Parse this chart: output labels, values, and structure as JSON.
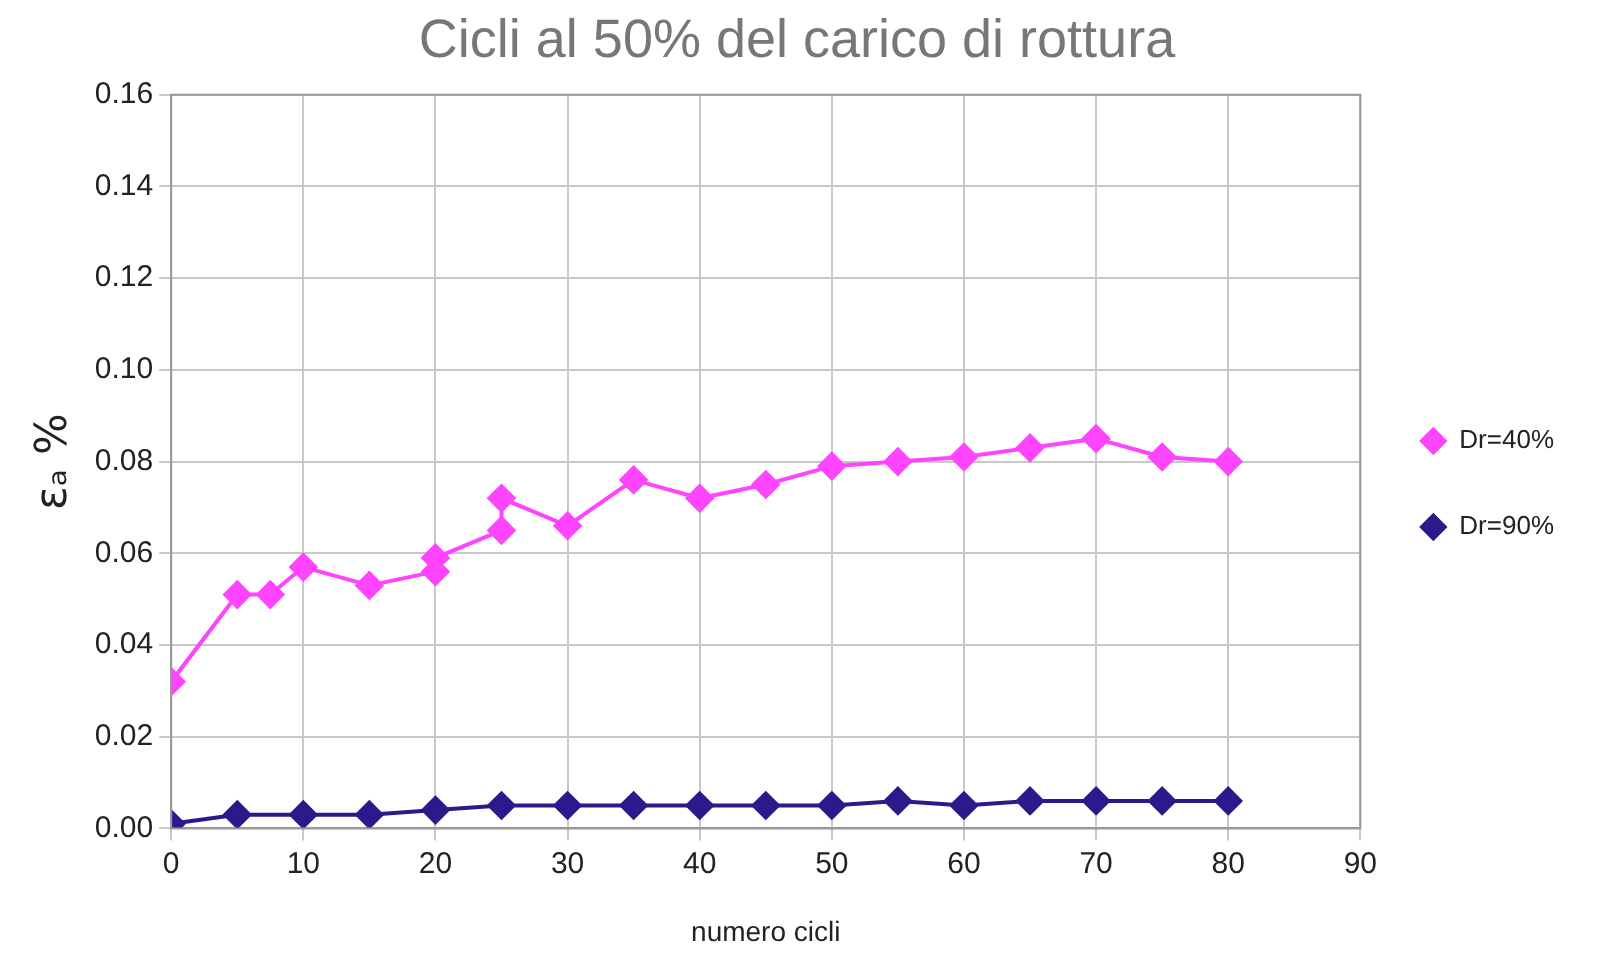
{
  "chart_data": {
    "type": "line",
    "title": "Cicli al 50% del carico di rottura",
    "xlabel": "numero cicli",
    "ylabel": "εₐ %",
    "series": [
      {
        "name": "Dr=40%",
        "color": "#ff44ff",
        "x": [
          0,
          5,
          7.5,
          10,
          15,
          20,
          20,
          25,
          25,
          30,
          35,
          40,
          45,
          50,
          55,
          60,
          65,
          70,
          75,
          80
        ],
        "values": [
          0.032,
          0.051,
          0.051,
          0.057,
          0.053,
          0.056,
          0.059,
          0.065,
          0.072,
          0.066,
          0.076,
          0.072,
          0.075,
          0.079,
          0.08,
          0.081,
          0.083,
          0.085,
          0.081,
          0.08
        ]
      },
      {
        "name": "Dr=90%",
        "color": "#2a1a8c",
        "x": [
          0,
          5,
          10,
          15,
          20,
          25,
          30,
          35,
          40,
          45,
          50,
          55,
          60,
          65,
          70,
          75,
          80
        ],
        "values": [
          0.001,
          0.003,
          0.003,
          0.003,
          0.004,
          0.005,
          0.005,
          0.005,
          0.005,
          0.005,
          0.005,
          0.006,
          0.005,
          0.006,
          0.006,
          0.006,
          0.006
        ]
      }
    ],
    "xlim": [
      0,
      90
    ],
    "xticks": [
      0,
      10,
      20,
      30,
      40,
      50,
      60,
      70,
      80,
      90
    ],
    "ylim": [
      0,
      0.16
    ],
    "yticks": [
      {
        "value": 0,
        "label": "0.00"
      },
      {
        "value": 0.02,
        "label": "0.02"
      },
      {
        "value": 0.04,
        "label": "0.04"
      },
      {
        "value": 0.06,
        "label": "0.06"
      },
      {
        "value": 0.08,
        "label": "0.08"
      },
      {
        "value": 0.1,
        "label": "0.10"
      },
      {
        "value": 0.12,
        "label": "0.12"
      },
      {
        "value": 0.14,
        "label": "0.14"
      },
      {
        "value": 0.16,
        "label": "0.16"
      }
    ],
    "grid": true,
    "legend": "right",
    "marker": "diamond",
    "line_style": "solid"
  }
}
